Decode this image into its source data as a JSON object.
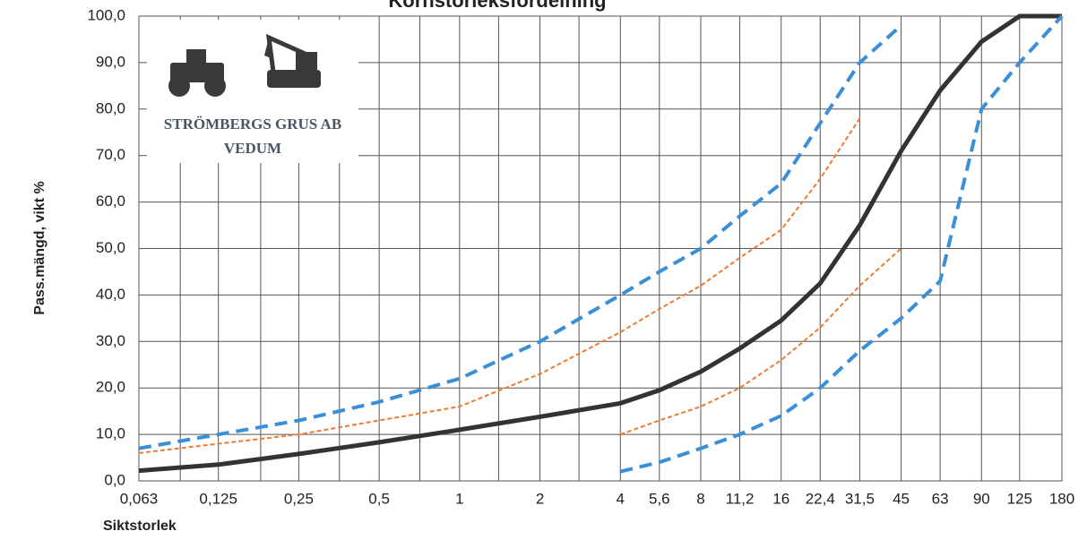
{
  "chart_data": {
    "type": "line",
    "title": "Kornstorleksfördelning",
    "y_label": "Pass.mängd, vikt %",
    "x_label": "Siktstorlek",
    "logo": {
      "line1": "STRÖMBERGS GRUS AB",
      "line2": "VEDUM"
    },
    "xscale": "log",
    "xlim": [
      0.063,
      180
    ],
    "ylim": [
      0,
      100
    ],
    "grid": true,
    "xticks": [
      {
        "value": 0.063,
        "label": "0,063"
      },
      {
        "value": 0.125,
        "label": "0,125"
      },
      {
        "value": 0.25,
        "label": "0,25"
      },
      {
        "value": 0.5,
        "label": "0,5"
      },
      1,
      2,
      4,
      {
        "value": 5.6,
        "label": "5,6"
      },
      8,
      {
        "value": 11.2,
        "label": "11,2"
      },
      16,
      {
        "value": 22.4,
        "label": "22,4"
      },
      {
        "value": 31.5,
        "label": "31,5"
      },
      45,
      63,
      90,
      125,
      180
    ],
    "minor_xticks": [
      0.09,
      0.18,
      0.355,
      0.71,
      1.4,
      2.8
    ],
    "yticks": [
      {
        "value": 0,
        "label": "0,0"
      },
      {
        "value": 10,
        "label": "10,0"
      },
      {
        "value": 20,
        "label": "20,0"
      },
      {
        "value": 30,
        "label": "30,0"
      },
      {
        "value": 40,
        "label": "40,0"
      },
      {
        "value": 50,
        "label": "50,0"
      },
      {
        "value": 60,
        "label": "60,0"
      },
      {
        "value": 70,
        "label": "70,0"
      },
      {
        "value": 80,
        "label": "80,0"
      },
      {
        "value": 90,
        "label": "90,0"
      },
      {
        "value": 100,
        "label": "100,0"
      }
    ],
    "series": [
      {
        "color": "#3b8fd6",
        "dash": "dashed",
        "width": 4,
        "x": [
          0.063,
          0.125,
          0.25,
          0.5,
          1,
          2,
          4,
          5.6,
          8,
          11.2,
          16,
          22.4,
          31.5,
          45
        ],
        "values": [
          7,
          10,
          13,
          17,
          22,
          30,
          40,
          45,
          50,
          57,
          64,
          77,
          90,
          98
        ]
      },
      {
        "color": "#f07a30",
        "dash": "dotted",
        "width": 2,
        "x": [
          0.063,
          0.125,
          0.25,
          0.5,
          1,
          2,
          4,
          5.6,
          8,
          11.2,
          16,
          22.4,
          31.5
        ],
        "values": [
          6,
          8,
          10,
          13,
          16,
          23,
          32,
          37,
          42,
          48,
          54,
          65,
          78
        ]
      },
      {
        "color": "#333333",
        "dash": "solid",
        "width": 5,
        "x": [
          0.063,
          0.125,
          0.25,
          0.5,
          1,
          2,
          4,
          5.6,
          8,
          11.2,
          16,
          22.4,
          31.5,
          45,
          63,
          90,
          125,
          180
        ],
        "values": [
          2.2,
          3.5,
          5.8,
          8.3,
          11,
          13.8,
          16.7,
          19.5,
          23.5,
          28.5,
          34.5,
          42.5,
          55,
          71,
          84,
          94.5,
          100,
          100
        ]
      },
      {
        "color": "#f07a30",
        "dash": "dotted",
        "width": 2,
        "x": [
          4,
          5.6,
          8,
          11.2,
          16,
          22.4,
          31.5,
          45
        ],
        "values": [
          10,
          13,
          16,
          20,
          26,
          33,
          42,
          50
        ]
      },
      {
        "color": "#3b8fd6",
        "dash": "dashed",
        "width": 4,
        "x": [
          4,
          5.6,
          8,
          11.2,
          16,
          22.4,
          31.5,
          45,
          63,
          90,
          125,
          180
        ],
        "values": [
          2,
          4,
          7,
          10,
          14,
          20,
          28,
          35,
          43,
          80,
          90,
          100
        ]
      }
    ]
  }
}
